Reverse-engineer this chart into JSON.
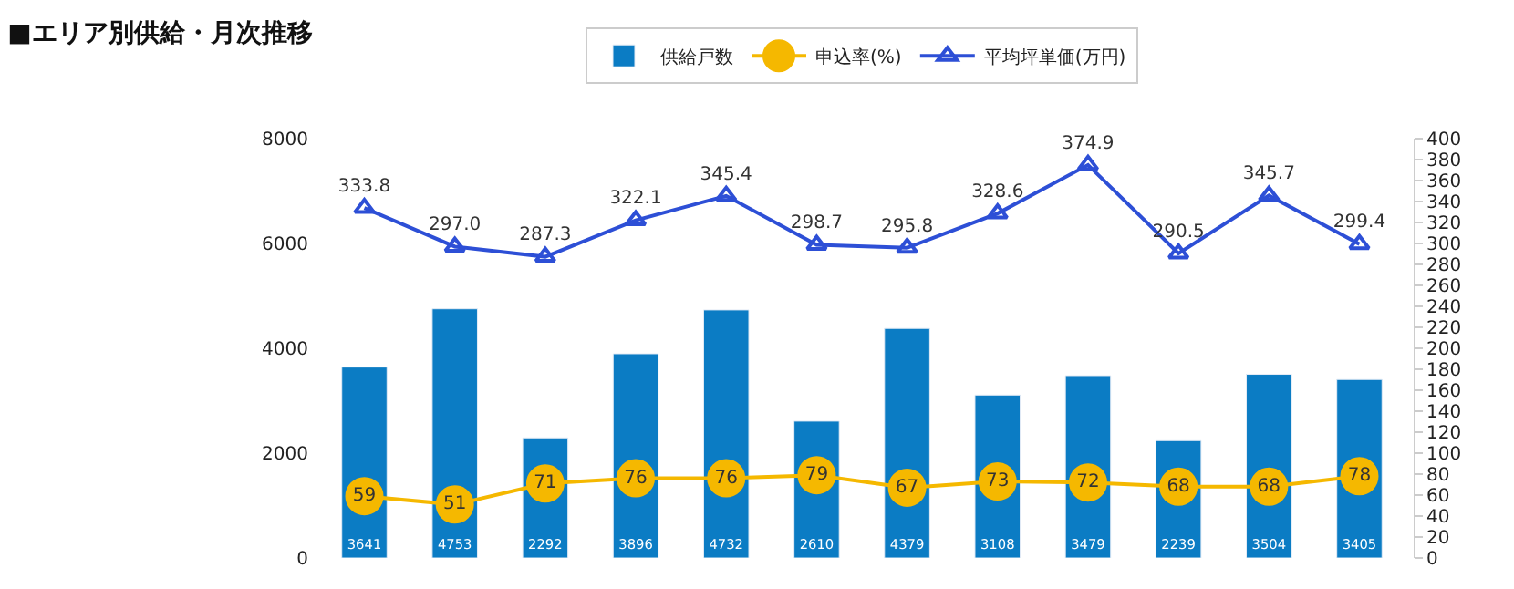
{
  "chart_data": [
    {
      "type": "bar",
      "title": "■エリア別供給・月次推移",
      "categories": [
        null,
        null,
        null,
        null,
        null,
        null,
        null,
        null,
        null,
        null,
        null,
        null
      ],
      "series": [
        {
          "name": "供給戸数",
          "color": "#0b7cc4",
          "values": [
            3641,
            4753,
            2292,
            3896,
            4732,
            2610,
            4379,
            3108,
            3479,
            2239,
            3504,
            3405
          ],
          "value_labels": [
            "3641",
            "4753",
            "2292",
            "3896",
            "4732",
            "2610",
            "4379",
            "3108",
            "3479",
            "2239",
            "3504",
            "3405"
          ]
        }
      ],
      "ylim": [
        0,
        8000
      ],
      "yticks": [
        0,
        2000,
        4000,
        6000,
        8000
      ],
      "legend": "top"
    },
    {
      "type": "line",
      "categories": [
        null,
        null,
        null,
        null,
        null,
        null,
        null,
        null,
        null,
        null,
        null,
        null
      ],
      "series": [
        {
          "name": "申込率(%)",
          "color": "#f5b800",
          "marker": "circle",
          "values": [
            59,
            51,
            71,
            76,
            76,
            79,
            67,
            73,
            72,
            68,
            68,
            78
          ],
          "value_labels": [
            "59",
            "51",
            "71",
            "76",
            "76",
            "79",
            "67",
            "73",
            "72",
            "68",
            "68",
            "78"
          ]
        },
        {
          "name": "平均坪単価(万円)",
          "color": "#2d4fd6",
          "marker": "triangle",
          "values": [
            333.8,
            297.0,
            287.3,
            322.1,
            345.4,
            298.7,
            295.8,
            328.6,
            374.9,
            290.5,
            345.7,
            299.4
          ],
          "value_labels": [
            "333.8",
            "297.0",
            "287.3",
            "322.1",
            "345.4",
            "298.7",
            "295.8",
            "328.6",
            "374.9",
            "290.5",
            "345.7",
            "299.4"
          ]
        }
      ],
      "ylim": [
        0,
        400
      ],
      "yticks": [
        0,
        20,
        40,
        60,
        80,
        100,
        120,
        140,
        160,
        180,
        200,
        220,
        240,
        260,
        280,
        300,
        320,
        340,
        360,
        380,
        400
      ],
      "legend": "top"
    }
  ]
}
